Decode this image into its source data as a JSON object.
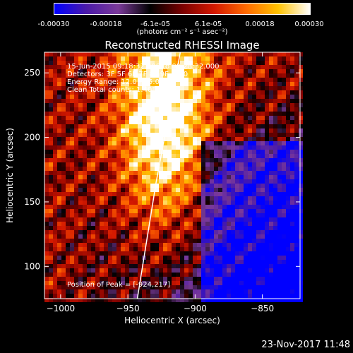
{
  "colorbar": {
    "ticks": [
      "-0.00030",
      "-0.00018",
      "-6.1e-05",
      "6.1e-05",
      "0.00018",
      "0.00030"
    ],
    "unit_label": "(photons cm⁻² s⁻¹ asec⁻²)",
    "colormap": [
      "#0000ff",
      "#4b1aa8",
      "#7b3a9a",
      "#000000",
      "#7a0000",
      "#d41800",
      "#ff6a00",
      "#ffc200",
      "#ffffff"
    ]
  },
  "annotations": {
    "time_range": "15-Jun-2015 09:18:32.000 to 09:28:32.000",
    "detectors": "Detectors: 3F 5F 6F 7F 8F 9F Att 0",
    "energy_range": "Energy Range: 12.0 - 25.0 keV",
    "algorithm": "Clean    Total counts: 1.40E+04",
    "peak": "Position of Peak = [-924,217]"
  },
  "footer": {
    "timestamp": "23-Nov-2017 11:48"
  },
  "chart_data": {
    "type": "heatmap",
    "title": "Reconstructed RHESSI Image",
    "xlabel": "Heliocentric X (arcsec)",
    "ylabel": "Heliocentric Y (arcsec)",
    "xlim": [
      -1012,
      -822
    ],
    "ylim": [
      75,
      266
    ],
    "xticks": [
      -1000,
      -950,
      -900,
      -850
    ],
    "yticks": [
      100,
      150,
      200,
      250
    ],
    "xtick_labels": [
      "−1000",
      "−950",
      "−900",
      "−850"
    ],
    "ytick_labels": [
      "100",
      "150",
      "200",
      "250"
    ],
    "peak": [
      -924,
      217
    ],
    "limb_points": [
      [
        -943,
        75
      ],
      [
        -936,
        120
      ],
      [
        -929,
        165
      ],
      [
        -921,
        210
      ],
      [
        -911,
        266
      ]
    ],
    "grid": false
  }
}
